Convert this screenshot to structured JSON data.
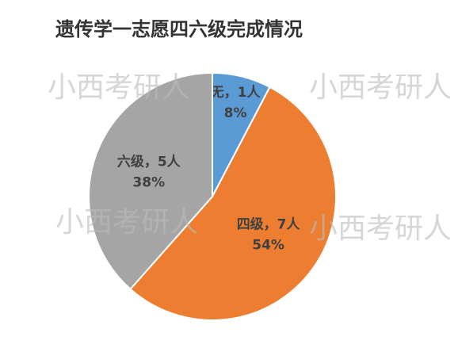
{
  "chart_data": {
    "type": "pie",
    "title": "遗传学一志愿四六级完成情况",
    "categories": [
      "无",
      "四级",
      "六级"
    ],
    "values": [
      1,
      7,
      5
    ],
    "value_labels": [
      "无，1人",
      "四级，7人",
      "六级，5人"
    ],
    "percent_labels": [
      "8%",
      "54%",
      "38%"
    ],
    "colors": [
      "#5b9bd5",
      "#ed7d31",
      "#a5a5a5"
    ],
    "watermark": "小西考研人"
  }
}
